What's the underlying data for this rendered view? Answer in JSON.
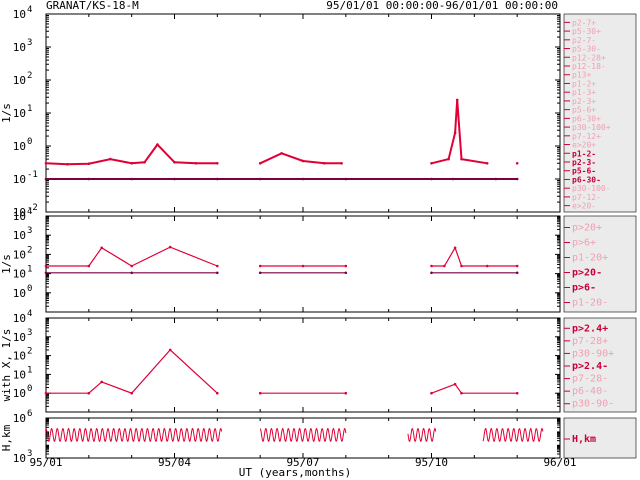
{
  "header": {
    "left_title": "GRANAT/KS-18-M",
    "right_title": "95/01/01 00:00:00-96/01/01 00:00:00"
  },
  "colors": {
    "series_red": "#e00036",
    "series_purple": "#7a0040",
    "legend_bg": "#ebebeb",
    "axis": "#000000",
    "legend_text": "#c8003a"
  },
  "x_axis": {
    "label": "UT (years,months)",
    "ticks": [
      "95/01",
      "95/04",
      "95/07",
      "95/10",
      "96/01"
    ],
    "tick_months": [
      0,
      3,
      6,
      9,
      12
    ]
  },
  "chart_data": [
    {
      "type": "line",
      "ylabel": "1/s",
      "yscale": "log",
      "ylim_exp": [
        -2,
        4
      ],
      "tick_exponents": [
        -2,
        -1,
        0,
        1,
        2,
        3,
        4
      ],
      "series": [
        {
          "name": "p1-2-",
          "x_months": [
            0,
            0.5,
            1,
            1.5,
            2,
            2.3,
            2.6,
            3,
            3.5,
            4,
            4.1,
            5,
            5.5,
            6,
            6.5,
            6.9,
            8.4,
            9,
            9.4,
            9.55,
            9.6,
            9.7,
            10.3,
            10.6,
            11
          ],
          "values": [
            0.3,
            0.28,
            0.29,
            0.4,
            0.3,
            0.32,
            1.1,
            0.32,
            0.3,
            0.3,
            null,
            0.3,
            0.6,
            0.35,
            0.3,
            0.3,
            null,
            0.3,
            0.4,
            2.5,
            25,
            0.4,
            0.3,
            null,
            0.3
          ]
        },
        {
          "name": "p2-3-",
          "x_months": [
            0,
            1,
            2,
            3,
            4,
            5,
            6,
            7,
            9,
            9.5,
            10.5,
            11
          ],
          "values": [
            0.1,
            0.1,
            0.1,
            0.1,
            0.1,
            0.1,
            0.1,
            0.1,
            0.1,
            0.1,
            0.1,
            0.1
          ]
        }
      ]
    },
    {
      "type": "line",
      "ylabel": "1/s",
      "yscale": "log",
      "ylim_exp": [
        -1,
        4
      ],
      "tick_exponents": [
        0,
        1,
        2,
        3,
        4
      ],
      "series": [
        {
          "name": "p>20-",
          "x_months": [
            0,
            1,
            1.3,
            2,
            2.9,
            4,
            4.1,
            5,
            6,
            7,
            8.4,
            9,
            9.3,
            9.55,
            9.7,
            10.3,
            11
          ],
          "values": [
            25,
            25,
            220,
            25,
            240,
            25,
            null,
            25,
            25,
            25,
            null,
            25,
            25,
            220,
            25,
            25,
            25
          ]
        },
        {
          "name": "p>6-",
          "x_months": [
            0,
            2,
            4,
            4.1,
            5,
            7,
            8.4,
            9,
            11
          ],
          "values": [
            11,
            11,
            11,
            null,
            11,
            11,
            null,
            11,
            11
          ]
        }
      ]
    },
    {
      "type": "line",
      "ylabel": "with X, 1/s",
      "yscale": "log",
      "ylim_exp": [
        -1,
        4
      ],
      "tick_exponents": [
        0,
        1,
        2,
        3,
        4
      ],
      "series": [
        {
          "name": "p>2.4-",
          "x_months": [
            0,
            1,
            1.3,
            2,
            2.9,
            4,
            4.1,
            5,
            7,
            8.4,
            9,
            9.55,
            9.7,
            11
          ],
          "values": [
            1,
            1,
            4,
            1,
            200,
            1,
            null,
            1,
            1,
            null,
            1,
            3,
            1,
            1
          ]
        }
      ]
    },
    {
      "type": "line",
      "ylabel": "H,km",
      "yscale": "log",
      "ylim_exp": [
        3,
        6
      ],
      "tick_exponents": [
        3,
        6
      ],
      "series": [
        {
          "name": "H,km",
          "periodic_days": 4,
          "min": 18000,
          "max": 160000,
          "segments_months": [
            [
              0,
              4.1
            ],
            [
              5,
              7
            ],
            [
              8.45,
              9.1
            ],
            [
              10.2,
              11.6
            ]
          ]
        }
      ]
    }
  ],
  "legend_groups": [
    [
      "p2-7+",
      "p5-30+",
      "p2-7-",
      "p5-30-",
      "p12-28+",
      "p12-18-",
      "p13+",
      "p1-2+",
      "p1-3+",
      "p2-3+",
      "p5-6+",
      "p6-30+",
      "p30-100+",
      "p7-12+",
      "e>20+",
      "p1-2-",
      "p2-3-",
      "p5-6-",
      "p6-30-",
      "p30-100-",
      "p7-12-",
      "e>20-"
    ],
    [
      "p>20+",
      "p>6+",
      "p1-20+",
      "p>20-",
      "p>6-",
      "p1-20-"
    ],
    [
      "p>2.4+",
      "p7-28+",
      "p30-90+",
      "p>2.4-",
      "p7-28-",
      "p6-40-",
      "p30-90-"
    ],
    [
      "H,km"
    ]
  ],
  "legend_active": [
    "p1-2-",
    "p2-3-",
    "p5-6-",
    "p6-30-",
    "p>20-",
    "p>6-",
    "p>2.4+",
    "p>2.4-",
    "H,km"
  ]
}
